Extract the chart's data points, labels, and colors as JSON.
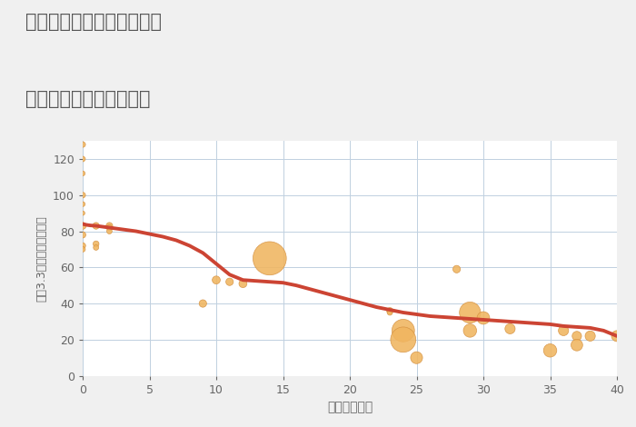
{
  "title_line1": "兵庫県姫路市安富町栃原の",
  "title_line2": "築年数別中古戸建て価格",
  "xlabel": "築年数（年）",
  "ylabel": "坪（3.3㎡）単価（万円）",
  "xlim": [
    0,
    40
  ],
  "ylim": [
    0,
    130
  ],
  "xticks": [
    0,
    5,
    10,
    15,
    20,
    25,
    30,
    35,
    40
  ],
  "yticks": [
    0,
    20,
    40,
    60,
    80,
    100,
    120
  ],
  "background_color": "#f0f0f0",
  "plot_bg_color": "#ffffff",
  "grid_color": "#c0d0e0",
  "line_color": "#cc4433",
  "bubble_color": "#f0b560",
  "bubble_edge_color": "#d49040",
  "title_color": "#555555",
  "axis_color": "#666666",
  "annotation_color": "#9aaa77",
  "scatter_x": [
    0,
    0,
    0,
    0,
    0,
    0,
    0,
    0,
    0,
    0,
    1,
    1,
    1,
    2,
    2,
    2,
    9,
    10,
    11,
    12,
    14,
    23,
    23,
    24,
    24,
    25,
    28,
    29,
    29,
    30,
    32,
    35,
    36,
    37,
    37,
    38,
    40
  ],
  "scatter_y": [
    128,
    120,
    112,
    100,
    95,
    90,
    83,
    78,
    72,
    70,
    83,
    73,
    71,
    83,
    82,
    80,
    40,
    53,
    52,
    51,
    65,
    36,
    35,
    25,
    20,
    10,
    59,
    35,
    25,
    32,
    26,
    14,
    25,
    22,
    17,
    22,
    22
  ],
  "scatter_size": [
    20,
    18,
    15,
    20,
    15,
    12,
    30,
    25,
    22,
    18,
    28,
    22,
    18,
    28,
    22,
    18,
    35,
    40,
    35,
    40,
    700,
    25,
    18,
    320,
    400,
    90,
    35,
    280,
    110,
    100,
    65,
    110,
    65,
    55,
    85,
    65,
    75
  ],
  "line_x": [
    0,
    0.3,
    0.6,
    1,
    1.5,
    2,
    2.5,
    3,
    4,
    5,
    6,
    7,
    8,
    9,
    10,
    11,
    12,
    13,
    14,
    15,
    16,
    17,
    18,
    19,
    20,
    21,
    22,
    23,
    24,
    25,
    26,
    27,
    28,
    29,
    30,
    31,
    32,
    33,
    34,
    35,
    36,
    37,
    38,
    39,
    40
  ],
  "line_y": [
    84,
    83.5,
    83.2,
    83,
    82.5,
    82,
    81.5,
    81,
    80,
    78.5,
    77,
    75,
    72,
    68,
    62,
    56,
    53,
    52.5,
    52,
    51.5,
    50,
    48,
    46,
    44,
    42,
    40,
    38,
    36.5,
    35,
    34,
    33,
    32.5,
    32,
    31.5,
    31,
    30.5,
    30,
    29.5,
    29,
    28.5,
    27.5,
    27,
    26.5,
    25,
    22
  ]
}
